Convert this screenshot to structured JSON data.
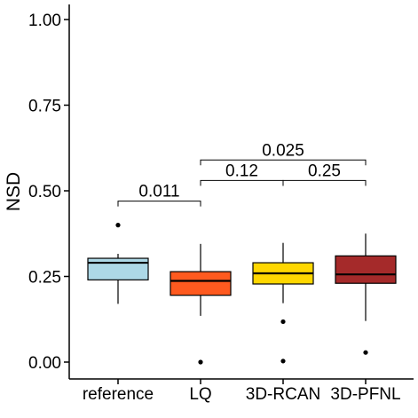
{
  "chart_data": {
    "type": "boxplot",
    "title": "",
    "xlabel": "",
    "ylabel": "NSD",
    "ylim": [
      -0.05,
      1.05
    ],
    "yticks": [
      "0.00",
      "0.25",
      "0.50",
      "0.75",
      "1.00"
    ],
    "grid": false,
    "legend": "none",
    "categories": [
      "reference",
      "LQ",
      "3D-RCAN",
      "3D-PFNL"
    ],
    "boxes": [
      {
        "category": "reference",
        "color": "#add8e6",
        "whisker_low": 0.17,
        "q1": 0.24,
        "median": 0.29,
        "q3": 0.303,
        "whisker_high": 0.316,
        "outliers": [
          0.4
        ]
      },
      {
        "category": "LQ",
        "color": "#ff5a1f",
        "whisker_low": 0.135,
        "q1": 0.195,
        "median": 0.237,
        "q3": 0.264,
        "whisker_high": 0.345,
        "outliers": [
          0.0
        ]
      },
      {
        "category": "3D-RCAN",
        "color": "#ffd700",
        "whisker_low": 0.172,
        "q1": 0.228,
        "median": 0.259,
        "q3": 0.29,
        "whisker_high": 0.348,
        "outliers": [
          0.118,
          0.003
        ]
      },
      {
        "category": "3D-PFNL",
        "color": "#a52a2a",
        "whisker_low": 0.12,
        "q1": 0.23,
        "median": 0.256,
        "q3": 0.31,
        "whisker_high": 0.375,
        "outliers": [
          0.028
        ]
      }
    ],
    "comparisons": [
      {
        "from": "reference",
        "to": "LQ",
        "y": 0.47,
        "label": "0.011"
      },
      {
        "from": "LQ",
        "to": "3D-RCAN",
        "y": 0.53,
        "label": "0.12"
      },
      {
        "from": "3D-RCAN",
        "to": "3D-PFNL",
        "y": 0.53,
        "label": "0.25"
      },
      {
        "from": "LQ",
        "to": "3D-PFNL",
        "y": 0.59,
        "label": "0.025"
      }
    ]
  }
}
